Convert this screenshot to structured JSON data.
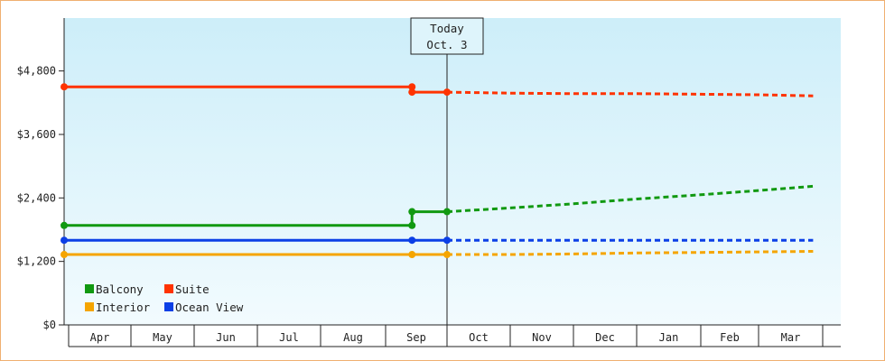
{
  "chart_data": {
    "type": "line",
    "categories": [
      "Apr",
      "May",
      "Jun",
      "Jul",
      "Aug",
      "Sep",
      "Oct",
      "Nov",
      "Dec",
      "Jan",
      "Feb",
      "Mar"
    ],
    "y_ticks": [
      "$0",
      "$1,200",
      "$2,400",
      "$3,600",
      "$4,800"
    ],
    "ylim": [
      0,
      5800
    ],
    "grid": false,
    "legend_position": "bottom-left",
    "today_marker": {
      "line1": "Today",
      "line2": "Oct. 3",
      "x": 6.0
    },
    "series": [
      {
        "name": "Suite",
        "color": "#ff3300",
        "historical": [
          [
            0,
            4500
          ],
          [
            5.43,
            4500
          ],
          [
            5.43,
            4400
          ],
          [
            6.0,
            4400
          ]
        ],
        "projected": [
          [
            6.0,
            4400
          ],
          [
            7,
            4380
          ],
          [
            8,
            4370
          ],
          [
            9,
            4370
          ],
          [
            10,
            4360
          ],
          [
            11,
            4350
          ],
          [
            11.85,
            4330
          ]
        ]
      },
      {
        "name": "Balcony",
        "color": "#119911",
        "historical": [
          [
            0,
            1880
          ],
          [
            5.43,
            1880
          ],
          [
            5.43,
            2140
          ],
          [
            6.0,
            2140
          ]
        ],
        "projected": [
          [
            6.0,
            2140
          ],
          [
            7,
            2210
          ],
          [
            8,
            2290
          ],
          [
            9,
            2380
          ],
          [
            10,
            2460
          ],
          [
            11,
            2540
          ],
          [
            11.85,
            2620
          ]
        ]
      },
      {
        "name": "Ocean View",
        "color": "#0b3fe6",
        "historical": [
          [
            0,
            1600
          ],
          [
            5.43,
            1600
          ],
          [
            6.0,
            1600
          ]
        ],
        "projected": [
          [
            6.0,
            1600
          ],
          [
            7,
            1600
          ],
          [
            8,
            1600
          ],
          [
            9,
            1600
          ],
          [
            10,
            1600
          ],
          [
            11,
            1600
          ],
          [
            11.85,
            1600
          ]
        ]
      },
      {
        "name": "Interior",
        "color": "#f5a500",
        "historical": [
          [
            0,
            1330
          ],
          [
            5.43,
            1330
          ],
          [
            6.0,
            1330
          ]
        ],
        "projected": [
          [
            6.0,
            1330
          ],
          [
            7,
            1330
          ],
          [
            8,
            1340
          ],
          [
            9,
            1360
          ],
          [
            10,
            1370
          ],
          [
            11,
            1380
          ],
          [
            11.85,
            1390
          ]
        ]
      }
    ],
    "legend": [
      {
        "label": "Balcony",
        "color": "#119911"
      },
      {
        "label": "Suite",
        "color": "#ff3300"
      },
      {
        "label": "Interior",
        "color": "#f5a500"
      },
      {
        "label": "Ocean View",
        "color": "#0b3fe6"
      }
    ]
  }
}
